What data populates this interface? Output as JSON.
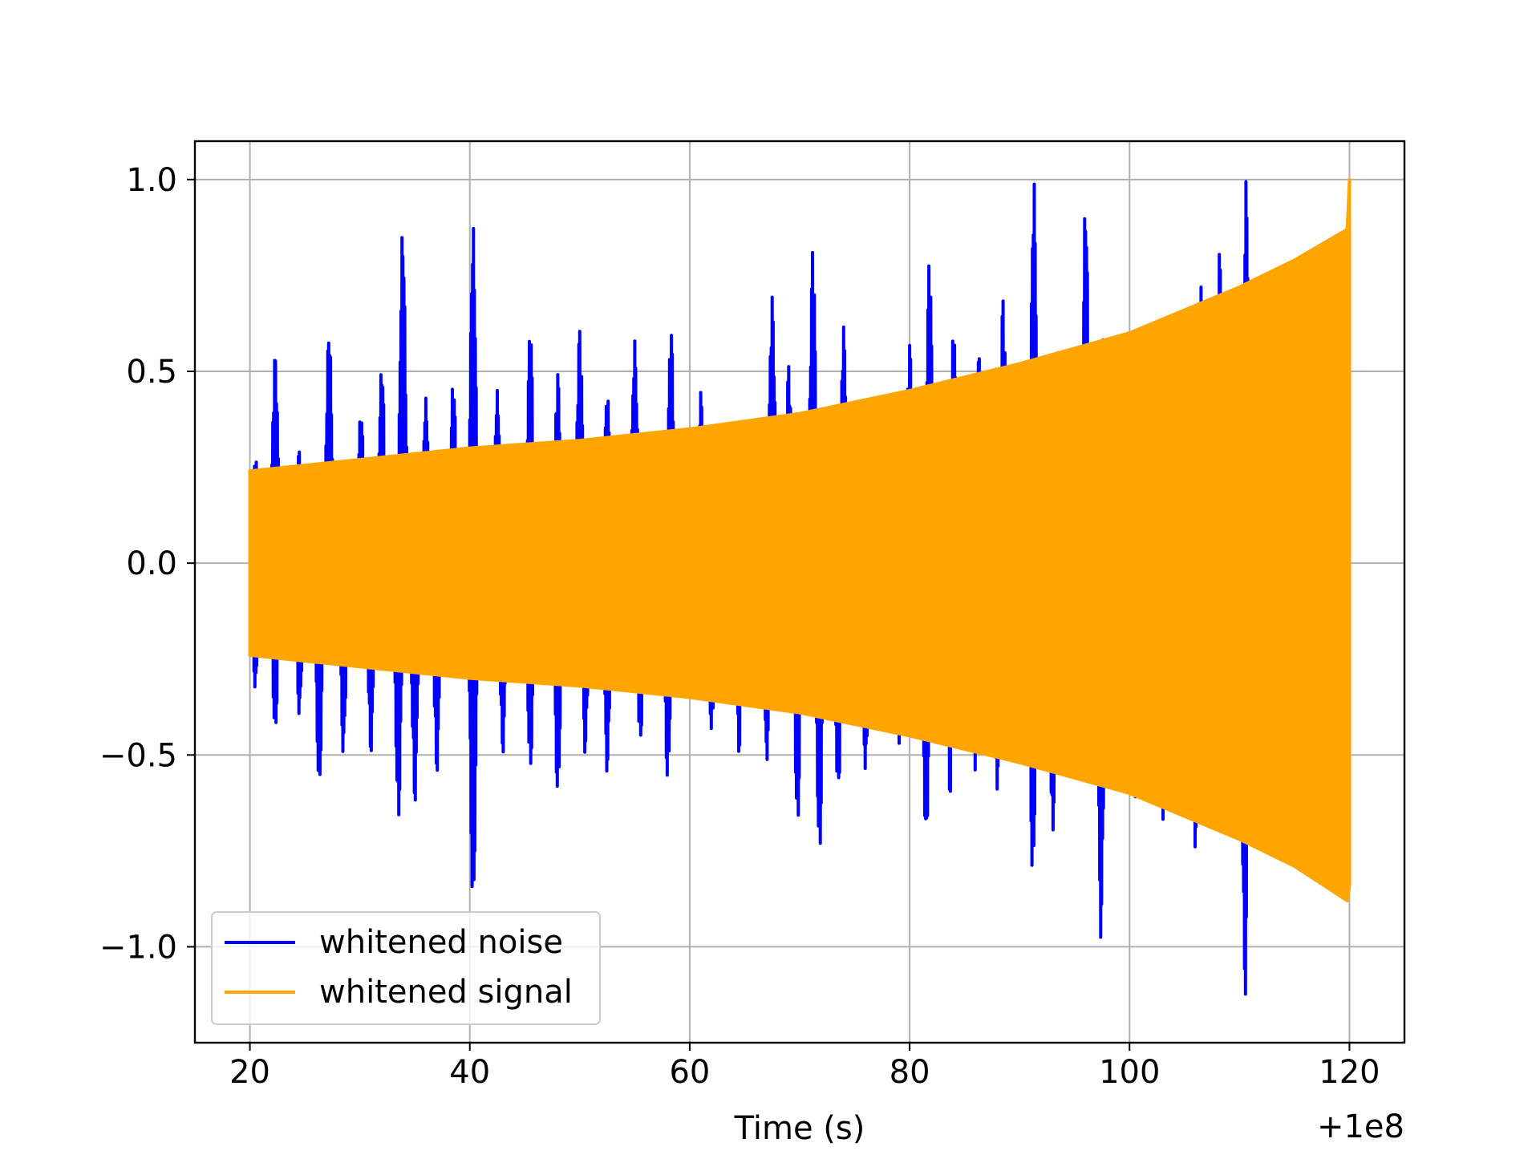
{
  "chart_data": {
    "type": "line",
    "title": "",
    "xlabel": "Time (s)",
    "ylabel": "",
    "x_offset_label": "+1e8",
    "x_offset": 100000000,
    "xlim": [
      15,
      125
    ],
    "ylim": [
      -1.25,
      1.1
    ],
    "xticks": [
      20,
      40,
      60,
      80,
      100,
      120
    ],
    "xtick_labels": [
      "20",
      "40",
      "60",
      "80",
      "100",
      "120"
    ],
    "yticks": [
      1.0,
      0.5,
      0.0,
      -0.5,
      -1.0
    ],
    "ytick_labels": [
      "1.0",
      "0.5",
      "0.0",
      "−0.5",
      "−1.0"
    ],
    "grid": true,
    "legend_location": "lower left",
    "series": [
      {
        "name": "whitened noise",
        "color": "#0000ff",
        "x_range": [
          20,
          120
        ],
        "peaks": [
          [
            20.5,
            0.28
          ],
          [
            22.3,
            0.55
          ],
          [
            24.5,
            0.3
          ],
          [
            27.2,
            0.62
          ],
          [
            30.1,
            0.4
          ],
          [
            32.0,
            0.52
          ],
          [
            33.9,
            0.88
          ],
          [
            36.0,
            0.43
          ],
          [
            38.5,
            0.48
          ],
          [
            40.3,
            0.88
          ],
          [
            42.5,
            0.45
          ],
          [
            45.5,
            0.62
          ],
          [
            48.0,
            0.5
          ],
          [
            50.0,
            0.62
          ],
          [
            52.5,
            0.45
          ],
          [
            55.0,
            0.58
          ],
          [
            58.3,
            0.62
          ],
          [
            61.0,
            0.45
          ],
          [
            65.0,
            0.38
          ],
          [
            67.5,
            0.7
          ],
          [
            69.0,
            0.52
          ],
          [
            71.2,
            0.83
          ],
          [
            74.0,
            0.62
          ],
          [
            77.0,
            0.45
          ],
          [
            80.0,
            0.58
          ],
          [
            81.8,
            0.8
          ],
          [
            84.0,
            0.62
          ],
          [
            86.3,
            0.55
          ],
          [
            88.5,
            0.7
          ],
          [
            91.3,
            1.0
          ],
          [
            93.5,
            0.55
          ],
          [
            96.0,
            0.95
          ],
          [
            97.5,
            0.62
          ],
          [
            100.0,
            0.55
          ],
          [
            103.0,
            0.62
          ],
          [
            106.5,
            0.72
          ],
          [
            108.2,
            0.82
          ],
          [
            110.6,
            1.0
          ],
          [
            112.0,
            0.52
          ],
          [
            114.0,
            0.45
          ],
          [
            117.0,
            0.4
          ],
          [
            119.8,
            0.25
          ]
        ],
        "troughs": [
          [
            20.5,
            -0.33
          ],
          [
            22.3,
            -0.45
          ],
          [
            24.5,
            -0.4
          ],
          [
            26.3,
            -0.6
          ],
          [
            28.5,
            -0.5
          ],
          [
            31.0,
            -0.5
          ],
          [
            33.5,
            -0.68
          ],
          [
            35.0,
            -0.63
          ],
          [
            37.0,
            -0.55
          ],
          [
            40.3,
            -0.92
          ],
          [
            43.0,
            -0.5
          ],
          [
            45.5,
            -0.55
          ],
          [
            48.0,
            -0.62
          ],
          [
            50.5,
            -0.5
          ],
          [
            52.5,
            -0.55
          ],
          [
            55.5,
            -0.48
          ],
          [
            58.0,
            -0.58
          ],
          [
            62.0,
            -0.45
          ],
          [
            64.5,
            -0.5
          ],
          [
            67.0,
            -0.52
          ],
          [
            69.8,
            -0.7
          ],
          [
            71.8,
            -0.78
          ],
          [
            73.5,
            -0.62
          ],
          [
            76.0,
            -0.55
          ],
          [
            79.0,
            -0.48
          ],
          [
            81.5,
            -0.75
          ],
          [
            83.7,
            -0.62
          ],
          [
            86.0,
            -0.55
          ],
          [
            88.0,
            -0.6
          ],
          [
            91.2,
            -0.84
          ],
          [
            93.0,
            -0.72
          ],
          [
            95.5,
            -0.6
          ],
          [
            97.4,
            -0.98
          ],
          [
            100.5,
            -0.62
          ],
          [
            103.0,
            -0.7
          ],
          [
            106.0,
            -0.75
          ],
          [
            108.0,
            -0.7
          ],
          [
            110.5,
            -1.14
          ],
          [
            112.5,
            -0.72
          ],
          [
            114.5,
            -0.68
          ],
          [
            117.0,
            -0.55
          ],
          [
            119.8,
            -0.3
          ]
        ]
      },
      {
        "name": "whitened signal",
        "color": "#ffa500",
        "x_range": [
          20,
          120
        ],
        "upper_envelope": [
          [
            20,
            0.24
          ],
          [
            30,
            0.27
          ],
          [
            40,
            0.3
          ],
          [
            50,
            0.32
          ],
          [
            60,
            0.35
          ],
          [
            70,
            0.39
          ],
          [
            80,
            0.45
          ],
          [
            90,
            0.52
          ],
          [
            100,
            0.6
          ],
          [
            110,
            0.72
          ],
          [
            115,
            0.79
          ],
          [
            119.8,
            0.87
          ],
          [
            120,
            1.0
          ]
        ],
        "lower_envelope": [
          [
            20,
            -0.24
          ],
          [
            30,
            -0.27
          ],
          [
            40,
            -0.3
          ],
          [
            50,
            -0.32
          ],
          [
            60,
            -0.35
          ],
          [
            70,
            -0.39
          ],
          [
            80,
            -0.45
          ],
          [
            90,
            -0.52
          ],
          [
            100,
            -0.6
          ],
          [
            110,
            -0.72
          ],
          [
            115,
            -0.79
          ],
          [
            119.8,
            -0.88
          ],
          [
            120,
            -0.84
          ]
        ]
      }
    ]
  }
}
